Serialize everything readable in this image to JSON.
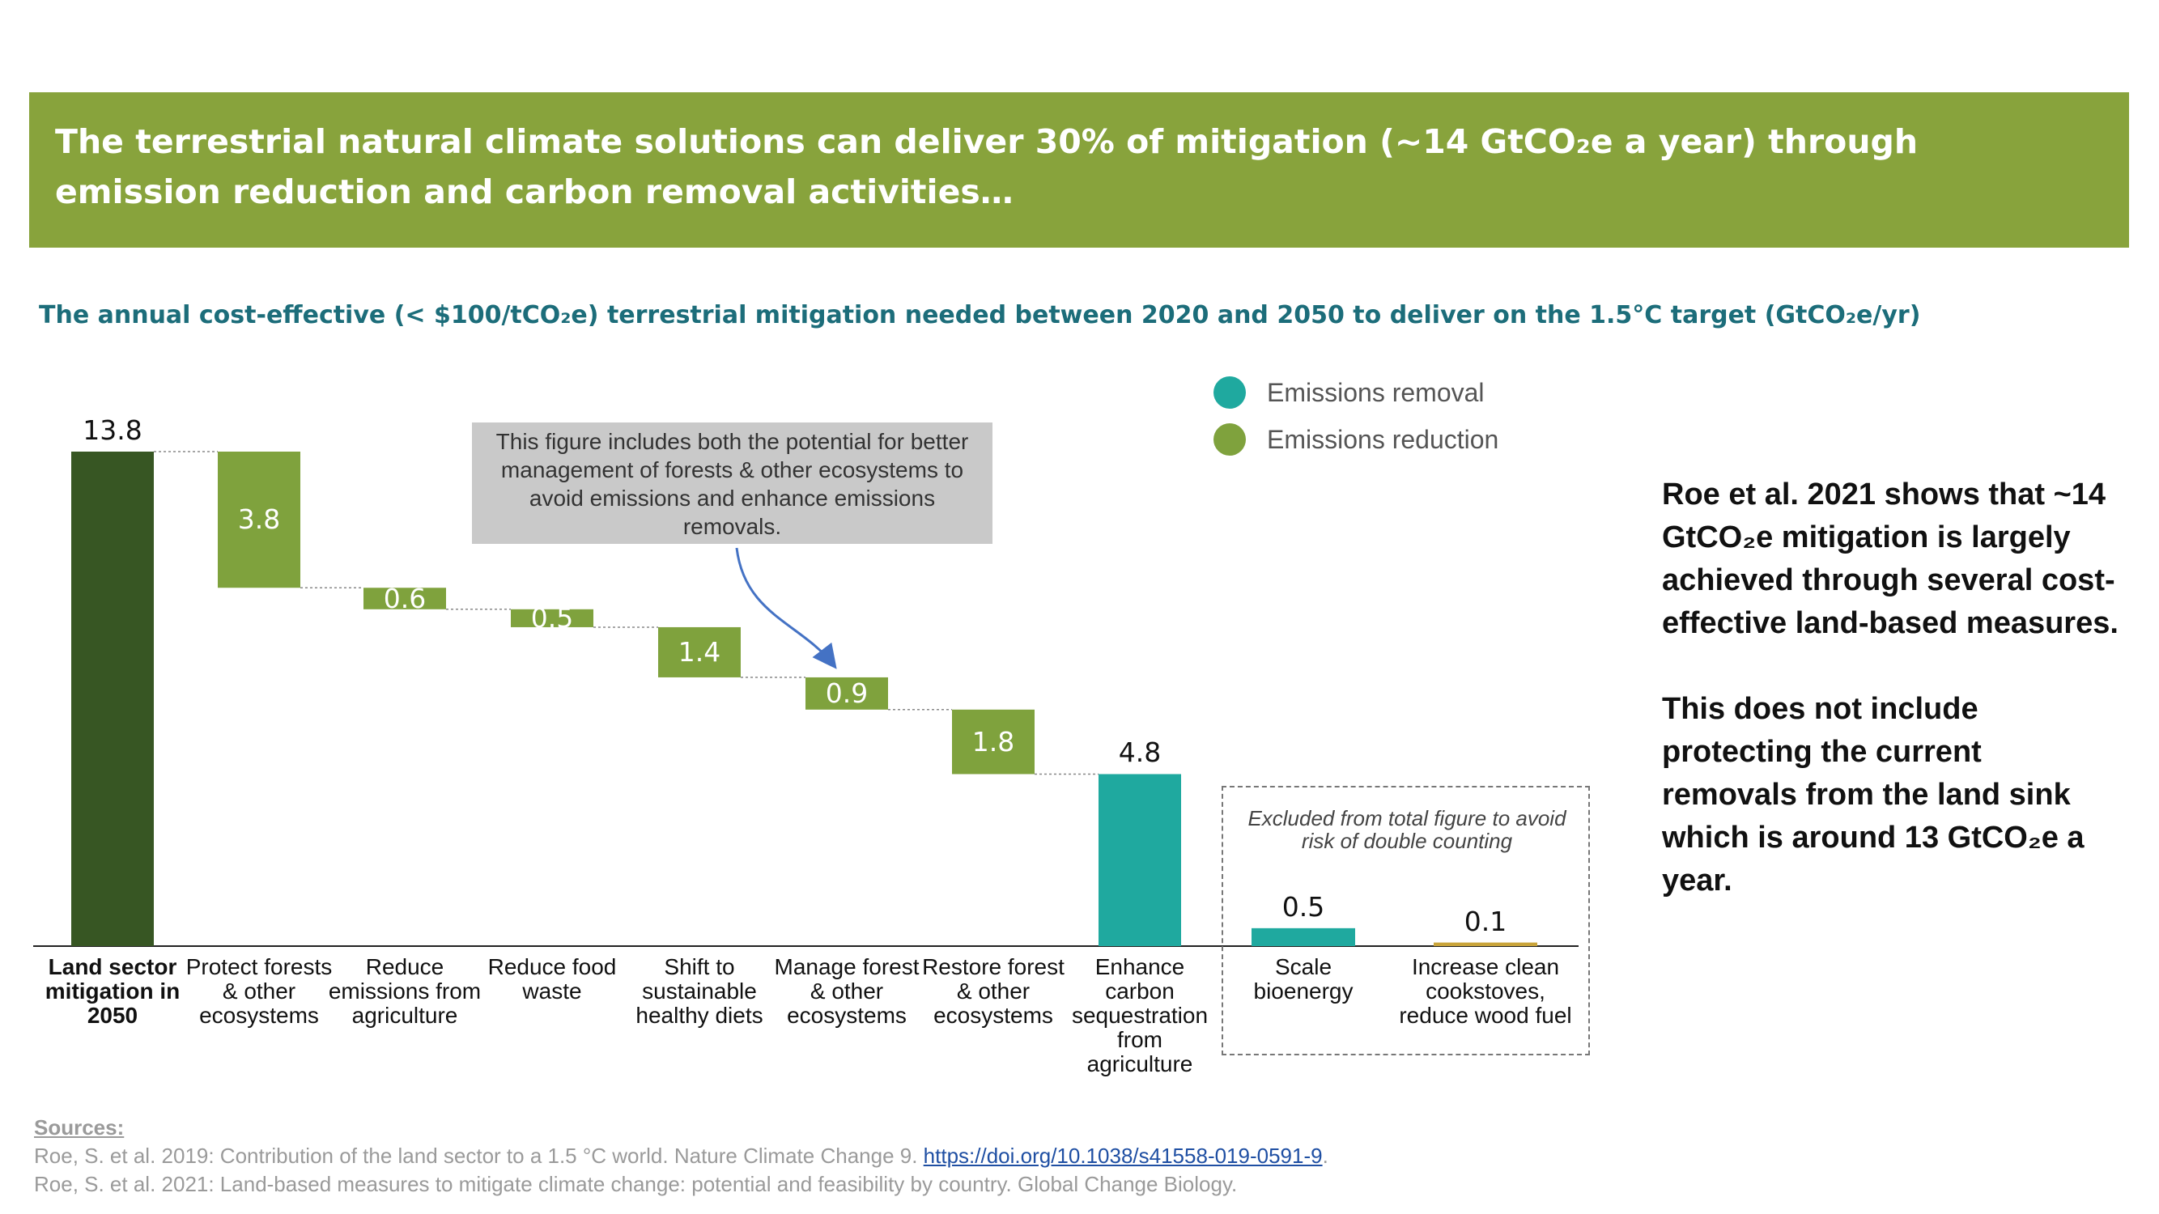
{
  "header": {
    "title": "The terrestrial natural climate solutions can deliver 30% of mitigation (~14 GtCO₂e a year) through emission reduction and carbon removal activities…"
  },
  "chart_data": {
    "type": "waterfall",
    "title": "The annual cost-effective (< $100/tCO₂e) terrestrial mitigation needed between 2020 and 2050 to deliver on the 1.5°C target (GtCO₂e/yr)",
    "categories": [
      "Land sector mitigation in 2050",
      "Protect forests & other ecosystems",
      "Reduce emissions from agriculture",
      "Reduce food waste",
      "Shift to sustainable healthy diets",
      "Manage forest & other ecosystems",
      "Restore forest & other ecosystems",
      "Enhance carbon sequestration from agriculture",
      "Scale bioenergy",
      "Increase clean cookstoves, reduce wood fuel"
    ],
    "values": [
      13.8,
      3.8,
      0.6,
      0.5,
      1.4,
      0.9,
      1.8,
      4.8,
      0.5,
      0.1
    ],
    "measure": [
      "absolute",
      "decrease",
      "decrease",
      "decrease",
      "decrease",
      "decrease",
      "decrease",
      "decrease",
      "absolute",
      "absolute"
    ],
    "colors": [
      "#375623",
      "#7fa23d",
      "#7fa23d",
      "#7fa23d",
      "#7fa23d",
      "#7fa23d",
      "#7fa23d",
      "#1fa99f",
      "#1fa99f",
      "#c9a43a"
    ],
    "legend": [
      {
        "name": "Emissions removal",
        "color": "#1fa99f"
      },
      {
        "name": "Emissions reduction",
        "color": "#7fa23d"
      }
    ],
    "annotations": [
      "This figure includes both the potential for better management of forests & other ecosystems to avoid emissions and enhance emissions removals.",
      "Excluded from total figure to avoid risk of double counting"
    ]
  },
  "side_text": {
    "paragraphs": [
      "Roe et al. 2021 shows that ~14 GtCO₂e mitigation is largely achieved through several cost-effective land-based measures.",
      "This does not include protecting the current removals from the land sink which is around 13 GtCO₂e a year."
    ]
  },
  "sources": {
    "title": "Sources:",
    "items": [
      {
        "text": "Roe, S. et al. 2019: Contribution of the land sector to a 1.5 °C world. Nature Climate Change 9. ",
        "link": "https://doi.org/10.1038/s41558-019-0591-9",
        "end": "."
      },
      {
        "text": "Roe, S. et al. 2021: Land-based measures to mitigate climate change: potential and feasibility by country. Global Change Biology."
      }
    ]
  }
}
